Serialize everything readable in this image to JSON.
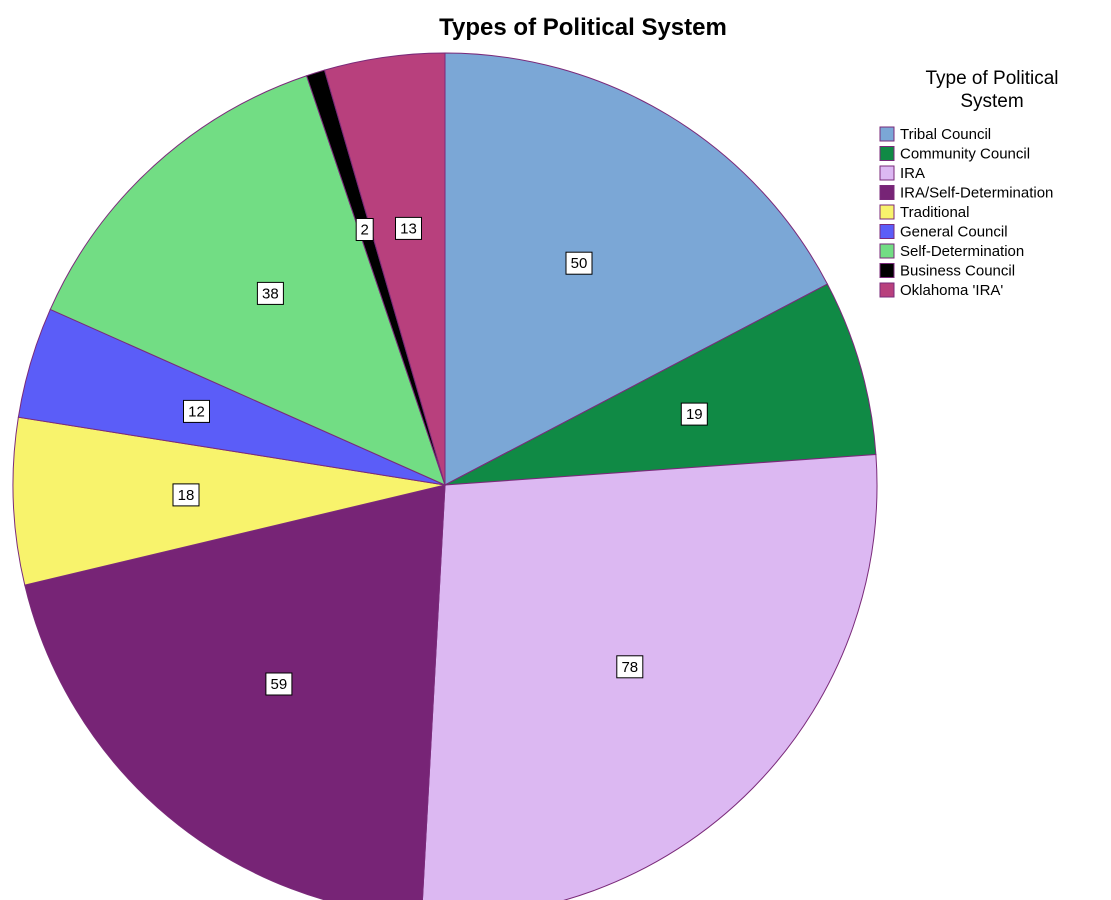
{
  "chart_data": {
    "type": "pie",
    "title": "Types of Political System",
    "legend_title": "Type of Political System",
    "legend_title_lines": [
      "Type of Political",
      "System"
    ],
    "legend_position": "right",
    "start_angle": "12 o'clock",
    "direction": "clockwise",
    "slice_border_color": "#7a2a7a",
    "slices": [
      {
        "label": "Tribal Council",
        "value": 50,
        "color": "#7ba7d6"
      },
      {
        "label": "Community Council",
        "value": 19,
        "color": "#108a45"
      },
      {
        "label": "IRA",
        "value": 78,
        "color": "#dcb8f2"
      },
      {
        "label": "IRA/Self-Determination",
        "value": 59,
        "color": "#772476"
      },
      {
        "label": "Traditional",
        "value": 18,
        "color": "#f8f36c"
      },
      {
        "label": "General Council",
        "value": 12,
        "color": "#5b5df8"
      },
      {
        "label": "Self-Determination",
        "value": 38,
        "color": "#72dd84"
      },
      {
        "label": "Business Council",
        "value": 2,
        "color": "#000000"
      },
      {
        "label": "Oklahoma 'IRA'",
        "value": 13,
        "color": "#b8407d"
      }
    ]
  }
}
